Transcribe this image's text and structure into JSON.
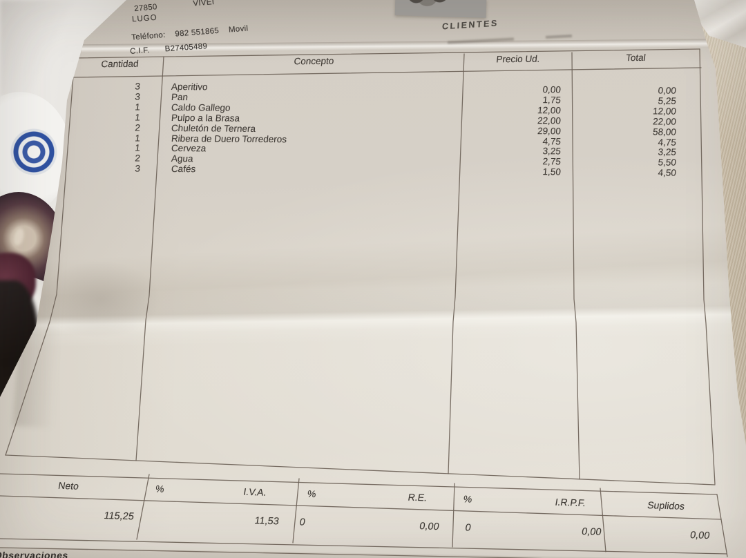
{
  "colors": {
    "ink": "#45403b",
    "line": "#6b6156",
    "paper": "#d8d2c9",
    "plate_blue": "#3a5aa5",
    "wine": "#4a222f",
    "cloth": "#cdc1ac"
  },
  "merchant": {
    "postal_code": "27850",
    "city_partial": "VIVEI",
    "province": "LUGO",
    "phone_label": "Teléfono:",
    "phone": "982 551865",
    "phone_suffix": "Movil",
    "cif_label": "C.I.F.",
    "cif_value": "B27405489",
    "section_label": "CLIENTES"
  },
  "table": {
    "headers": {
      "cantidad": "Cantidad",
      "concepto": "Concepto",
      "precio_ud": "Precio Ud.",
      "total": "Total"
    },
    "items": [
      {
        "qty": "3",
        "concept": "Aperitivo",
        "price": "0,00",
        "total": "0,00"
      },
      {
        "qty": "3",
        "concept": "Pan",
        "price": "1,75",
        "total": "5,25"
      },
      {
        "qty": "1",
        "concept": "Caldo Gallego",
        "price": "12,00",
        "total": "12,00"
      },
      {
        "qty": "1",
        "concept": "Pulpo a la Brasa",
        "price": "22,00",
        "total": "22,00"
      },
      {
        "qty": "2",
        "concept": "Chuletón de Ternera",
        "price": "29,00",
        "total": "58,00"
      },
      {
        "qty": "1",
        "concept": "Ribera de Duero Torrederos",
        "price": "4,75",
        "total": "4,75"
      },
      {
        "qty": "1",
        "concept": "Cerveza",
        "price": "3,25",
        "total": "3,25"
      },
      {
        "qty": "2",
        "concept": "Agua",
        "price": "2,75",
        "total": "5,50"
      },
      {
        "qty": "3",
        "concept": "Cafés",
        "price": "1,50",
        "total": "4,50"
      }
    ]
  },
  "totals": {
    "neto_label": "Neto",
    "neto": "115,25",
    "pct_label": "%",
    "iva_label": "I.V.A.",
    "iva": "11,53",
    "re_pct": "0",
    "re_label": "R.E.",
    "re": "0,00",
    "irpf_pct": "0",
    "irpf_label": "I.R.P.F.",
    "irpf": "0,00",
    "suplidos_label": "Suplidos",
    "suplidos": "0,00"
  },
  "footer": {
    "observaciones_partial": "Observaciones"
  }
}
